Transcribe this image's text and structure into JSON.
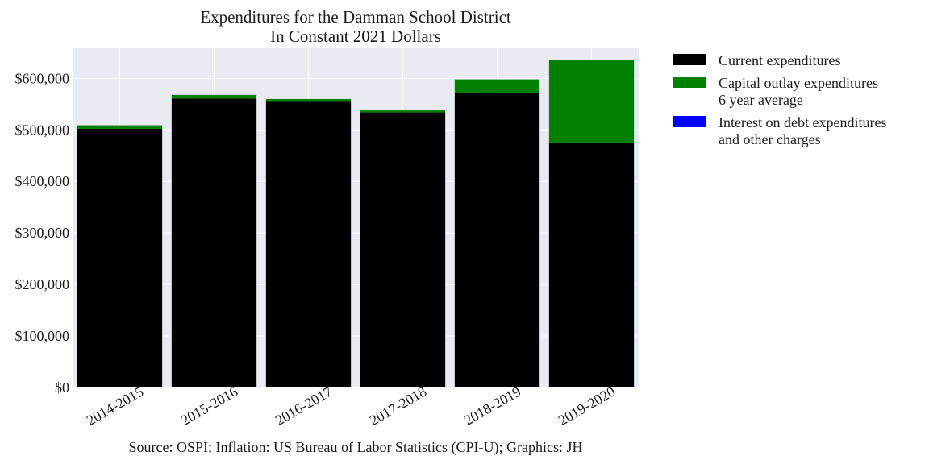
{
  "chart_data": {
    "type": "bar",
    "stacked": true,
    "title": "Expenditures for the Damman School District",
    "subtitle": "In Constant 2021 Dollars",
    "xlabel": "",
    "ylabel": "",
    "categories": [
      "2014-2015",
      "2015-2016",
      "2016-2017",
      "2017-2018",
      "2018-2019",
      "2019-2020"
    ],
    "series": [
      {
        "name": "Current expenditures",
        "color": "#000000",
        "values": [
          502000,
          561000,
          556000,
          534000,
          572000,
          475000
        ]
      },
      {
        "name": "Capital outlay expenditures\n6 year average",
        "color": "#008000",
        "values": [
          7000,
          7000,
          4000,
          4000,
          26000,
          160000
        ]
      },
      {
        "name": "Interest on debt expenditures\nand other charges",
        "color": "#0000ff",
        "values": [
          0,
          0,
          0,
          0,
          0,
          0
        ]
      }
    ],
    "ylim": [
      0,
      660000
    ],
    "yticks": [
      0,
      100000,
      200000,
      300000,
      400000,
      500000,
      600000
    ],
    "ytick_labels": [
      "$0",
      "$100,000",
      "$200,000",
      "$300,000",
      "$400,000",
      "$500,000",
      "$600,000"
    ],
    "grid": true,
    "legend_position": "outside-right",
    "source_note": "Source: OSPI; Inflation: US Bureau of Labor Statistics (CPI-U); Graphics: JH"
  }
}
